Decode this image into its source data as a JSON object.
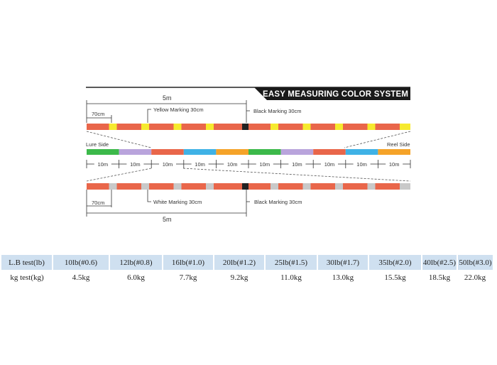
{
  "diagram": {
    "title": "EASY MEASURING COLOR SYSTEM IV",
    "top": {
      "five_m": "5m",
      "seventy_cm": "70cm",
      "yellow_marking": "Yellow Marking 30cm",
      "black_marking": "Black Marking 30cm"
    },
    "middle": {
      "lure_side": "Lure Side",
      "reel_side": "Reel Side",
      "segment_label": "10m",
      "segment_colors": [
        "#3cb94a",
        "#b9a4dc",
        "#e9664a",
        "#3fb2e6",
        "#f5a329",
        "#3cb94a",
        "#b9a4dc",
        "#e9664a",
        "#3fb2e6",
        "#f5a329"
      ]
    },
    "bottom": {
      "five_m": "5m",
      "seventy_cm": "70cm",
      "white_marking": "White Marking 30cm",
      "black_marking": "Black Marking 30cm"
    },
    "colors": {
      "base_red": "#e9664a",
      "yellow_mark": "#f6ea2e",
      "white_mark": "#c9c9c9",
      "black_mark": "#222222",
      "banner": "#1a1a1a"
    }
  },
  "spec_table": {
    "header_label": "L.B test(lb)",
    "header_values": [
      "10lb(#0.6)",
      "12lb(#0.8)",
      "16lb(#1.0)",
      "20lb(#1.2)",
      "25lb(#1.5)",
      "30lb(#1.7)",
      "35lb(#2.0)",
      "40lb(#2.5)",
      "50lb(#3.0)"
    ],
    "row_label": "kg test(kg)",
    "row_values": [
      "4.5kg",
      "6.0kg",
      "7.7kg",
      "9.2kg",
      "11.0kg",
      "13.0kg",
      "15.5kg",
      "18.5kg",
      "22.0kg"
    ],
    "header_bg": "#cfe0f0"
  }
}
